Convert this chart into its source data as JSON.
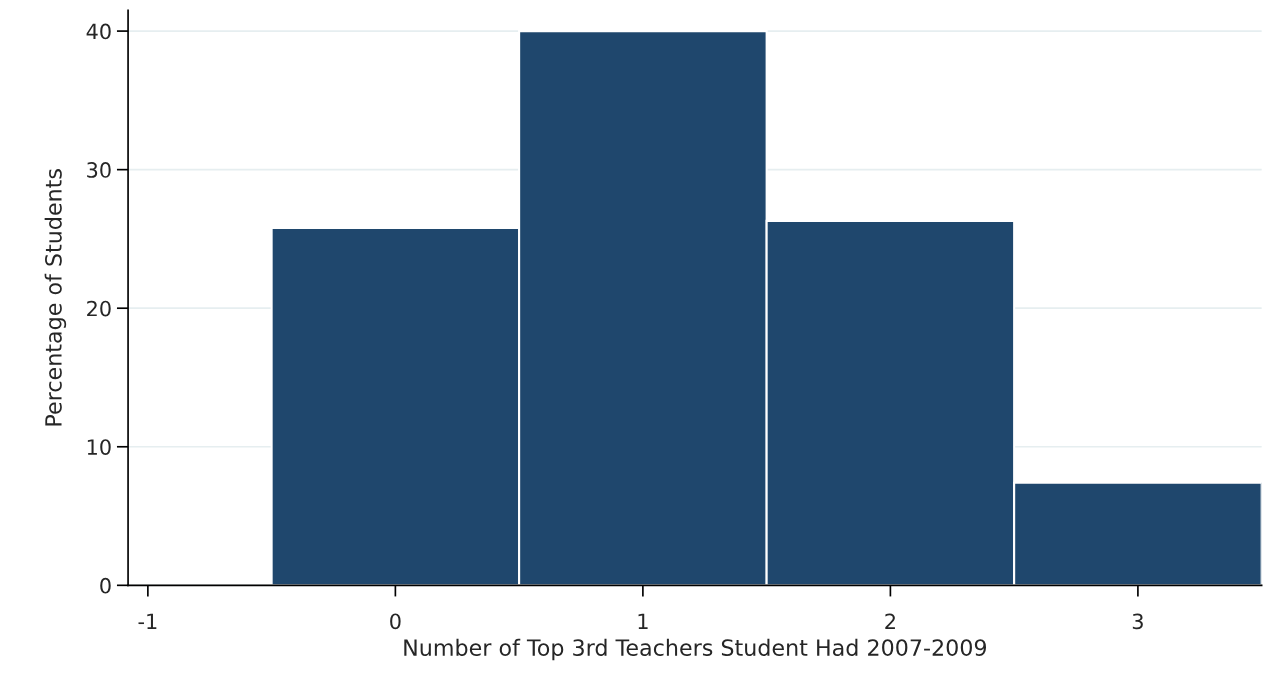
{
  "chart_data": {
    "type": "histogram",
    "xlabel": "Number of Top 3rd Teachers Student Had 2007-2009",
    "ylabel": "Percentage of Students",
    "bins": [
      -0.5,
      0.5,
      1.5,
      2.5,
      3.5
    ],
    "values": [
      25.8,
      40.0,
      26.3,
      7.4
    ],
    "color": "#1f476d",
    "xlim": [
      -1.08,
      3.5
    ],
    "xticks": [
      -1,
      0,
      1,
      2,
      3
    ],
    "ylim": [
      0,
      41.5
    ],
    "yticks": [
      0,
      10,
      20,
      30,
      40
    ],
    "grid": "y"
  }
}
